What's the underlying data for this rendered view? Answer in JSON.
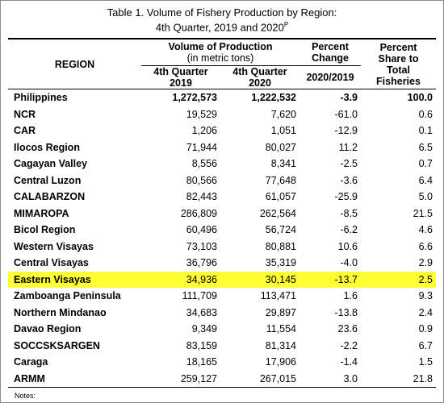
{
  "title_line1": "Table 1. Volume of Fishery Production by Region:",
  "title_line2": "4th Quarter, 2019 and 2020",
  "title_sup": "P",
  "headers": {
    "region": "REGION",
    "volume": "Volume of Production",
    "volume_unit": "(in metric tons)",
    "q2019_a": "4th Quarter",
    "q2019_b": "2019",
    "q2020_a": "4th Quarter",
    "q2020_b": "2020",
    "pct_change_a": "Percent",
    "pct_change_b": "Change",
    "pct_change_period": "2020/2019",
    "share_a": "Percent",
    "share_b": "Share to",
    "share_c": "Total",
    "share_d": "Fisheries"
  },
  "rows": [
    {
      "region": "Philippines",
      "v2019": "1,272,573",
      "v2020": "1,222,532",
      "change": "-3.9",
      "share": "100.0"
    },
    {
      "region": "NCR",
      "v2019": "19,529",
      "v2020": "7,620",
      "change": "-61.0",
      "share": "0.6"
    },
    {
      "region": "CAR",
      "v2019": "1,206",
      "v2020": "1,051",
      "change": "-12.9",
      "share": "0.1"
    },
    {
      "region": "Ilocos Region",
      "v2019": "71,944",
      "v2020": "80,027",
      "change": "11.2",
      "share": "6.5"
    },
    {
      "region": "Cagayan Valley",
      "v2019": "8,556",
      "v2020": "8,341",
      "change": "-2.5",
      "share": "0.7"
    },
    {
      "region": "Central Luzon",
      "v2019": "80,566",
      "v2020": "77,648",
      "change": "-3.6",
      "share": "6.4"
    },
    {
      "region": "CALABARZON",
      "v2019": "82,443",
      "v2020": "61,057",
      "change": "-25.9",
      "share": "5.0"
    },
    {
      "region": "MIMAROPA",
      "v2019": "286,809",
      "v2020": "262,564",
      "change": "-8.5",
      "share": "21.5"
    },
    {
      "region": "Bicol Region",
      "v2019": "60,496",
      "v2020": "56,724",
      "change": "-6.2",
      "share": "4.6"
    },
    {
      "region": "Western Visayas",
      "v2019": "73,103",
      "v2020": "80,881",
      "change": "10.6",
      "share": "6.6"
    },
    {
      "region": "Central Visayas",
      "v2019": "36,796",
      "v2020": "35,319",
      "change": "-4.0",
      "share": "2.9"
    },
    {
      "region": "Eastern Visayas",
      "v2019": "34,936",
      "v2020": "30,145",
      "change": "-13.7",
      "share": "2.5"
    },
    {
      "region": "Zamboanga Peninsula",
      "v2019": "111,709",
      "v2020": "113,471",
      "change": "1.6",
      "share": "9.3"
    },
    {
      "region": "Northern Mindanao",
      "v2019": "34,683",
      "v2020": "29,897",
      "change": "-13.8",
      "share": "2.4"
    },
    {
      "region": "Davao Region",
      "v2019": "9,349",
      "v2020": "11,554",
      "change": "23.6",
      "share": "0.9"
    },
    {
      "region": "SOCCSKSARGEN",
      "v2019": "83,159",
      "v2020": "81,314",
      "change": "-2.2",
      "share": "6.7"
    },
    {
      "region": "Caraga",
      "v2019": "18,165",
      "v2020": "17,906",
      "change": "-1.4",
      "share": "1.5"
    },
    {
      "region": "ARMM",
      "v2019": "259,127",
      "v2020": "267,015",
      "change": "3.0",
      "share": "21.8"
    }
  ],
  "highlight_color": "#ffff33",
  "notes": "Notes:"
}
